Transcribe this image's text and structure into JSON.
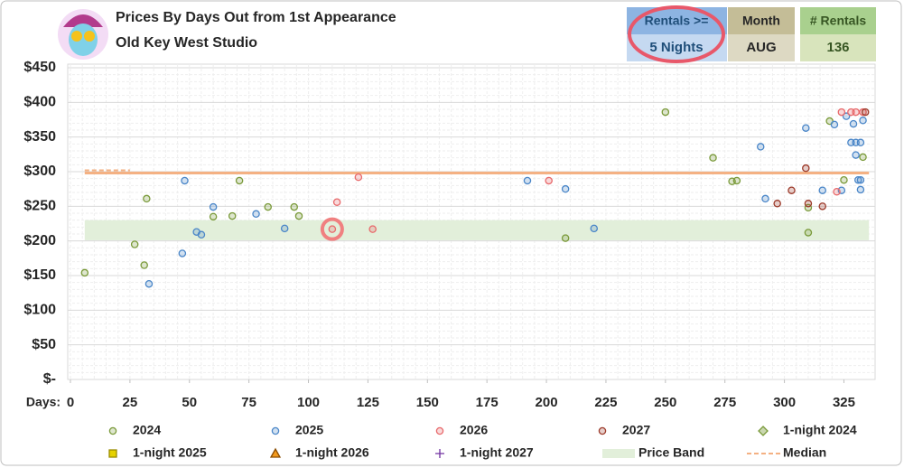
{
  "chart_data": {
    "type": "scatter",
    "title": "Prices By Days Out from 1st Appearance",
    "subtitle": "Old Key West Studio",
    "filters": [
      {
        "label": "Rentals >=",
        "value": "5 Nights"
      },
      {
        "label": "Month",
        "value": "AUG"
      },
      {
        "label": "# Rentals",
        "value": 136
      }
    ],
    "x_label": "Days:",
    "xlim": [
      0,
      340
    ],
    "xticks": [
      0,
      25,
      50,
      75,
      100,
      125,
      150,
      175,
      200,
      225,
      250,
      275,
      300,
      325
    ],
    "ylim": [
      0,
      450
    ],
    "yticks": [
      {
        "value": 0,
        "label": "$-"
      },
      {
        "value": 50,
        "label": "$50"
      },
      {
        "value": 100,
        "label": "$100"
      },
      {
        "value": 150,
        "label": "$150"
      },
      {
        "value": 200,
        "label": "$200"
      },
      {
        "value": 250,
        "label": "$250"
      },
      {
        "value": 300,
        "label": "$300"
      },
      {
        "value": 350,
        "label": "$350"
      },
      {
        "value": 400,
        "label": "$400"
      },
      {
        "value": 450,
        "label": "$450"
      }
    ],
    "grid": true,
    "series": [
      {
        "name": "2024",
        "color": "#7a9a3a",
        "marker": "circle",
        "x": [
          6,
          27,
          31,
          32,
          60,
          68,
          71,
          83,
          94,
          96,
          208,
          250,
          270,
          278,
          280,
          310,
          310,
          319,
          325,
          333
        ],
        "values": [
          154,
          195,
          165,
          261,
          235,
          236,
          287,
          249,
          249,
          236,
          204,
          386,
          320,
          286,
          287,
          212,
          248,
          373,
          288,
          321
        ]
      },
      {
        "name": "2025",
        "color": "#4a86c8",
        "marker": "circle",
        "x": [
          33,
          47,
          48,
          53,
          55,
          60,
          78,
          90,
          192,
          208,
          220,
          290,
          292,
          309,
          316,
          321,
          324,
          326,
          328,
          329,
          330,
          330,
          331,
          332,
          332,
          332,
          333
        ],
        "values": [
          138,
          182,
          287,
          213,
          209,
          249,
          239,
          218,
          287,
          275,
          218,
          336,
          261,
          363,
          273,
          368,
          273,
          380,
          342,
          369,
          342,
          324,
          288,
          288,
          274,
          342,
          374
        ]
      },
      {
        "name": "2026",
        "color": "#e8696b",
        "marker": "circle",
        "x": [
          110,
          112,
          121,
          127,
          201,
          322,
          324,
          328,
          330,
          333
        ],
        "values": [
          217,
          256,
          292,
          217,
          287,
          271,
          386,
          386,
          386,
          386
        ]
      },
      {
        "name": "2027",
        "color": "#9c3a2a",
        "marker": "circle",
        "x": [
          297,
          303,
          309,
          310,
          316,
          334
        ],
        "values": [
          254,
          273,
          305,
          254,
          250,
          386
        ]
      },
      {
        "name": "1-night 2024",
        "color": "#7a9a3a",
        "marker": "diamond",
        "x": [],
        "values": []
      },
      {
        "name": "1-night 2025",
        "color": "#e6d200",
        "marker": "square",
        "x": [],
        "values": []
      },
      {
        "name": "1-night 2026",
        "color": "#f29a1e",
        "marker": "triangle",
        "x": [],
        "values": []
      },
      {
        "name": "1-night 2027",
        "color": "#7030a0",
        "marker": "plus",
        "x": [],
        "values": []
      }
    ],
    "price_band": {
      "name": "Price Band",
      "color": "#e2efda",
      "range": [
        201,
        230
      ]
    },
    "median": {
      "name": "Median",
      "color": "#f4b183",
      "value": 298
    }
  }
}
